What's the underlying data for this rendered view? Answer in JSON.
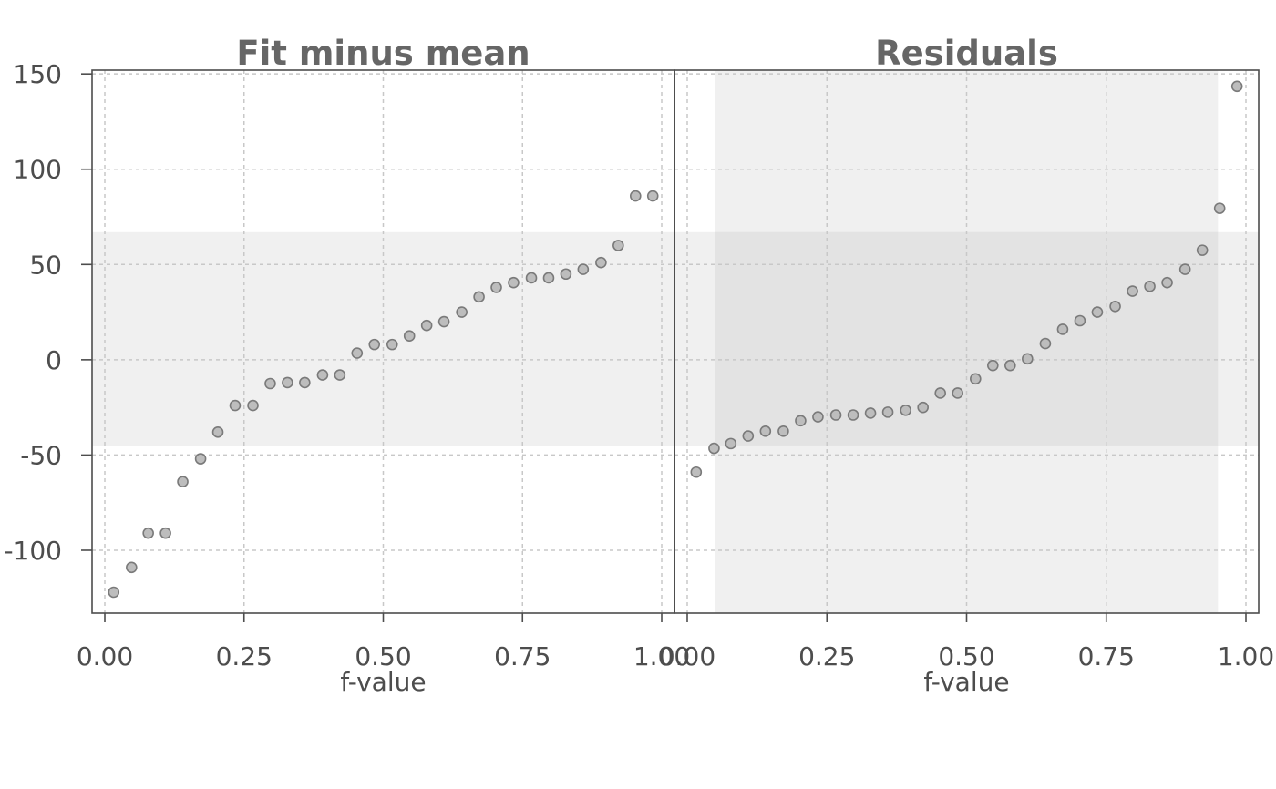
{
  "chart_data": {
    "type": "scatter",
    "layout": "two panels side by side, shared y axis",
    "grid": true,
    "y_axis": {
      "ylim": [
        -133,
        152
      ],
      "ticks": [
        150,
        100,
        50,
        0,
        -50,
        -100
      ],
      "tick_labels": [
        "150",
        "100",
        "50",
        "0",
        "-50",
        "-100"
      ]
    },
    "band": {
      "description": "shaded range of fitted values shown across both panels",
      "ymin": -45,
      "ymax": 67,
      "color": "#f0f0f0"
    },
    "panels": [
      {
        "title": "Fit minus mean",
        "xlabel": "f-value",
        "xlim": [
          -0.022,
          1.022
        ],
        "xticks": [
          0.0,
          0.25,
          0.5,
          0.75,
          1.0
        ],
        "xtick_labels": [
          "0.00",
          "0.25",
          "0.50",
          "0.75",
          "1.00"
        ],
        "x": [
          0.016,
          0.048,
          0.078,
          0.109,
          0.14,
          0.172,
          0.203,
          0.234,
          0.266,
          0.297,
          0.328,
          0.359,
          0.391,
          0.422,
          0.453,
          0.484,
          0.516,
          0.547,
          0.578,
          0.609,
          0.641,
          0.672,
          0.703,
          0.734,
          0.766,
          0.797,
          0.828,
          0.859,
          0.891,
          0.922,
          0.953,
          0.984
        ],
        "y": [
          -122,
          -109,
          -91,
          -91,
          -64,
          -52,
          -38,
          -24,
          -24,
          -12.5,
          -12,
          -12,
          -8,
          -8,
          3.5,
          8,
          8,
          12.5,
          18,
          20,
          25,
          33,
          38,
          40.5,
          43,
          43,
          45,
          47.5,
          51,
          60,
          86,
          86
        ]
      },
      {
        "title": "Residuals",
        "xlabel": "f-value",
        "xlim": [
          -0.022,
          1.022
        ],
        "xticks": [
          0.0,
          0.25,
          0.5,
          0.75,
          1.0
        ],
        "xtick_labels": [
          "0.00",
          "0.25",
          "0.50",
          "0.75",
          "1.00"
        ],
        "shaded_x_range": [
          0.05,
          0.95
        ],
        "x": [
          0.016,
          0.048,
          0.078,
          0.109,
          0.14,
          0.172,
          0.203,
          0.234,
          0.266,
          0.297,
          0.328,
          0.359,
          0.391,
          0.422,
          0.453,
          0.484,
          0.516,
          0.547,
          0.578,
          0.609,
          0.641,
          0.672,
          0.703,
          0.734,
          0.766,
          0.797,
          0.828,
          0.859,
          0.891,
          0.922,
          0.953,
          0.984
        ],
        "y": [
          -59,
          -46.5,
          -44,
          -40,
          -37.5,
          -37.5,
          -32,
          -30,
          -29,
          -29,
          -28,
          -27.5,
          -26.5,
          -25,
          -17.5,
          -17.5,
          -10,
          -3,
          -3,
          0.5,
          8.5,
          16,
          20.5,
          25,
          28,
          36,
          38.5,
          40.5,
          47.5,
          57.5,
          79.5,
          143.5
        ]
      }
    ]
  }
}
